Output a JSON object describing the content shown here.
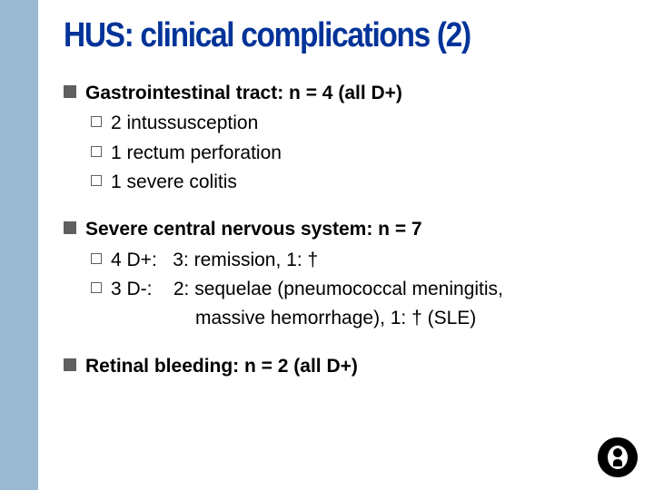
{
  "colors": {
    "stripe": "#9bb8d3",
    "title": "#003399",
    "bullet": "#5f5f5f",
    "text": "#000000",
    "bg": "#ffffff"
  },
  "title": "HUS: clinical complications (2)",
  "blocks": [
    {
      "heading": "Gastrointestinal tract: n = 4 (all D+)",
      "items": [
        "2 intussusception",
        "1 rectum perforation",
        "1 severe colitis"
      ]
    },
    {
      "heading": "Severe central nervous system: n = 7",
      "items": [
        "4 D+:   3: remission, 1: †",
        "3 D-:    2: sequelae (pneumococcal meningitis,"
      ],
      "continuation": "massive hemorrhage),  1: † (SLE)"
    },
    {
      "heading": "Retinal bleeding: n = 2 (all D+)",
      "items": []
    }
  ]
}
